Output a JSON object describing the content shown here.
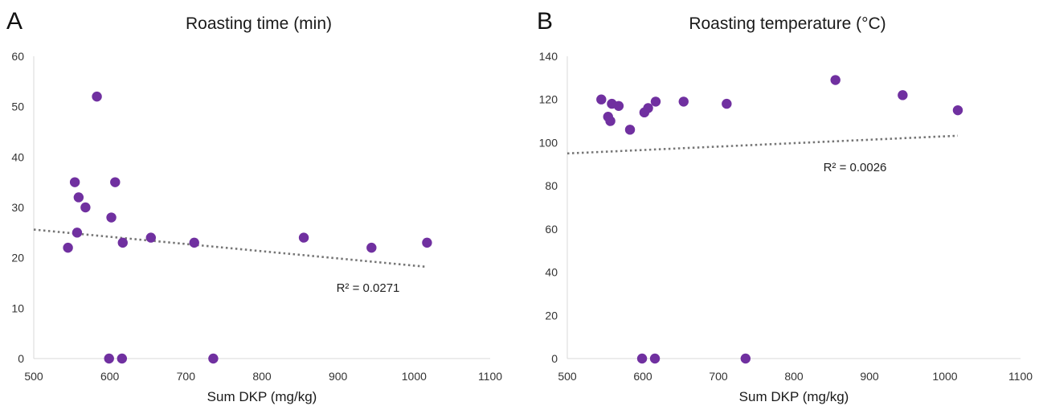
{
  "chart_data": [
    {
      "type": "scatter",
      "panel": "A",
      "title": "Roasting time (min)",
      "xlabel": "Sum DKP (mg/kg)",
      "ylabel": "",
      "xlim": [
        500,
        1100
      ],
      "ylim": [
        0,
        60
      ],
      "xticks": [
        500,
        600,
        700,
        800,
        900,
        1000,
        1100
      ],
      "yticks": [
        0,
        10,
        20,
        30,
        40,
        50,
        60
      ],
      "grid": false,
      "marker_color": "#7030a0",
      "points": [
        {
          "x": 545,
          "y": 22
        },
        {
          "x": 554,
          "y": 35
        },
        {
          "x": 557,
          "y": 25
        },
        {
          "x": 559,
          "y": 32
        },
        {
          "x": 568,
          "y": 30
        },
        {
          "x": 583,
          "y": 52
        },
        {
          "x": 599,
          "y": 0
        },
        {
          "x": 602,
          "y": 28
        },
        {
          "x": 607,
          "y": 35
        },
        {
          "x": 616,
          "y": 0
        },
        {
          "x": 617,
          "y": 23
        },
        {
          "x": 654,
          "y": 24
        },
        {
          "x": 711,
          "y": 23
        },
        {
          "x": 736,
          "y": 0
        },
        {
          "x": 855,
          "y": 24
        },
        {
          "x": 944,
          "y": 22
        },
        {
          "x": 1017,
          "y": 23
        }
      ],
      "trendline": {
        "x": [
          500,
          1017
        ],
        "y": [
          25.6,
          18.2
        ],
        "style": "dotted",
        "color": "#767676"
      },
      "annotation": "R² = 0.0271"
    },
    {
      "type": "scatter",
      "panel": "B",
      "title": "Roasting temperature (°C)",
      "xlabel": "Sum DKP (mg/kg)",
      "ylabel": "",
      "xlim": [
        500,
        1100
      ],
      "ylim": [
        0,
        140
      ],
      "xticks": [
        500,
        600,
        700,
        800,
        900,
        1000,
        1100
      ],
      "yticks": [
        0,
        20,
        40,
        60,
        80,
        100,
        120,
        140
      ],
      "grid": false,
      "marker_color": "#7030a0",
      "points": [
        {
          "x": 545,
          "y": 120
        },
        {
          "x": 554,
          "y": 112
        },
        {
          "x": 557,
          "y": 110
        },
        {
          "x": 559,
          "y": 118
        },
        {
          "x": 568,
          "y": 117
        },
        {
          "x": 583,
          "y": 106
        },
        {
          "x": 599,
          "y": 0
        },
        {
          "x": 602,
          "y": 114
        },
        {
          "x": 607,
          "y": 116
        },
        {
          "x": 616,
          "y": 0
        },
        {
          "x": 617,
          "y": 119
        },
        {
          "x": 654,
          "y": 119
        },
        {
          "x": 711,
          "y": 118
        },
        {
          "x": 736,
          "y": 0
        },
        {
          "x": 855,
          "y": 129
        },
        {
          "x": 944,
          "y": 122
        },
        {
          "x": 1017,
          "y": 115
        }
      ],
      "trendline": {
        "x": [
          500,
          1017
        ],
        "y": [
          95,
          103.2
        ],
        "style": "dotted",
        "color": "#767676"
      },
      "annotation": "R² = 0.0026"
    }
  ]
}
